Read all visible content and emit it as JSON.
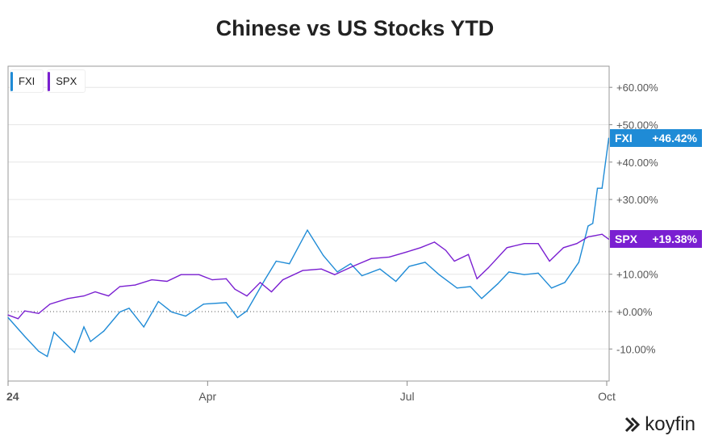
{
  "chart_data": {
    "type": "line",
    "title": "Chinese vs US Stocks YTD",
    "xlabel": "",
    "ylabel": "",
    "x_unit": "months since Jan 1 2024",
    "xlim": [
      0,
      9.05
    ],
    "ylim": [
      -18,
      66
    ],
    "x_ticks": [
      {
        "value": 0,
        "label": "24"
      },
      {
        "value": 3,
        "label": "Apr"
      },
      {
        "value": 6,
        "label": "Jul"
      },
      {
        "value": 9,
        "label": "Oct"
      }
    ],
    "y_ticks": [
      {
        "value": 60,
        "label": "+60.00%"
      },
      {
        "value": 50,
        "label": "+50.00%"
      },
      {
        "value": 40,
        "label": "+40.00%"
      },
      {
        "value": 30,
        "label": "+30.00%"
      },
      {
        "value": 20,
        "label": ""
      },
      {
        "value": 10,
        "label": "+10.00%"
      },
      {
        "value": 0,
        "label": "+0.00%"
      },
      {
        "value": -10,
        "label": "-10.00%"
      }
    ],
    "grid": true,
    "legend_position": "top-left",
    "series": [
      {
        "name": "FXI",
        "color": "#1f8bd6",
        "last_label": "+46.42%",
        "x": [
          0,
          0.25,
          0.46,
          0.59,
          0.69,
          1.0,
          1.14,
          1.24,
          1.44,
          1.68,
          1.82,
          2.04,
          2.26,
          2.46,
          2.67,
          2.94,
          3.28,
          3.45,
          3.59,
          3.86,
          4.03,
          4.23,
          4.5,
          4.74,
          4.95,
          5.15,
          5.32,
          5.59,
          5.83,
          6.03,
          6.27,
          6.48,
          6.75,
          6.95,
          7.12,
          7.36,
          7.53,
          7.76,
          7.97,
          8.17,
          8.37,
          8.58,
          8.72,
          8.79,
          8.86,
          8.93,
          9.03
        ],
        "y": [
          -1.6,
          -6.6,
          -10.6,
          -12,
          -5.5,
          -10.9,
          -4.1,
          -8,
          -5.2,
          -0.1,
          0.9,
          -4.1,
          2.7,
          -0.1,
          -1.2,
          2,
          2.4,
          -1.6,
          0.2,
          8.5,
          13.5,
          12.8,
          21.8,
          15,
          10.6,
          12.8,
          9.6,
          11.4,
          8.1,
          12.1,
          13.2,
          9.9,
          6.3,
          6.7,
          3.5,
          7.4,
          10.6,
          9.9,
          10.3,
          6.3,
          7.8,
          13.2,
          22.9,
          23.6,
          33,
          33,
          46.42
        ]
      },
      {
        "name": "SPX",
        "color": "#7a1fd1",
        "last_label": "+19.38%",
        "x": [
          0,
          0.15,
          0.25,
          0.46,
          0.63,
          0.9,
          1.14,
          1.31,
          1.51,
          1.68,
          1.91,
          2.16,
          2.39,
          2.6,
          2.87,
          3.07,
          3.28,
          3.41,
          3.59,
          3.79,
          3.96,
          4.13,
          4.43,
          4.71,
          4.91,
          5.18,
          5.46,
          5.73,
          6.0,
          6.2,
          6.41,
          6.58,
          6.71,
          6.92,
          7.05,
          7.22,
          7.5,
          7.76,
          7.97,
          8.14,
          8.35,
          8.55,
          8.72,
          8.93,
          9.03
        ],
        "y": [
          -0.9,
          -1.9,
          0.2,
          -0.5,
          2,
          3.5,
          4.2,
          5.3,
          4.2,
          6.7,
          7.1,
          8.5,
          8.1,
          9.9,
          9.9,
          8.5,
          8.8,
          6,
          4.2,
          7.8,
          5.3,
          8.5,
          11,
          11.4,
          9.9,
          12.1,
          14.2,
          14.6,
          16,
          17.1,
          18.6,
          16.4,
          13.5,
          15.3,
          8.8,
          11.7,
          17.1,
          18.2,
          18.2,
          13.5,
          17.1,
          18.2,
          20,
          20.7,
          19.38
        ]
      }
    ]
  },
  "branding": {
    "logo": "koyfin"
  }
}
